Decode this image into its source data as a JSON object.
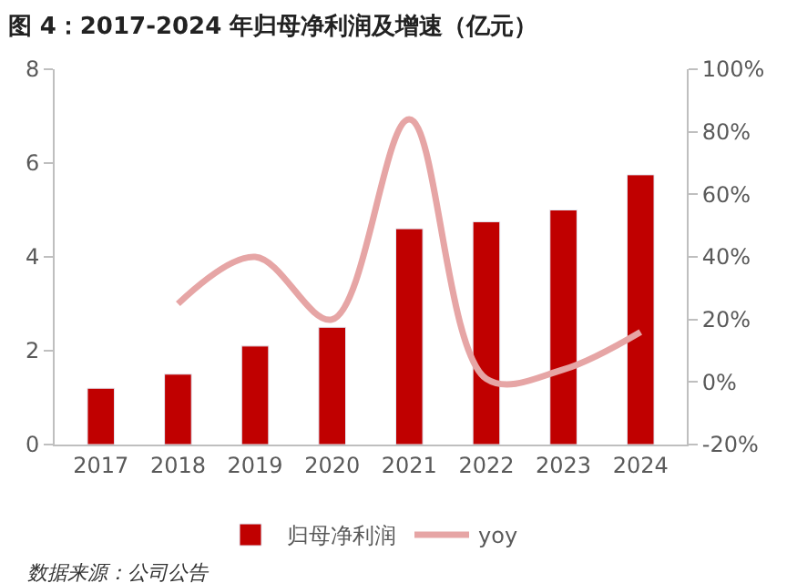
{
  "chart_data": {
    "type": "bar",
    "title": "图 4：2017-2024 年归母净利润及增速（亿元）",
    "categories": [
      "2017",
      "2018",
      "2019",
      "2020",
      "2021",
      "2022",
      "2023",
      "2024"
    ],
    "series": [
      {
        "name": "归母净利润",
        "color": "#c00000",
        "values": [
          1.2,
          1.5,
          2.1,
          2.5,
          4.6,
          4.75,
          5.0,
          5.75
        ]
      },
      {
        "name": "yoy",
        "type": "line",
        "axis": "y2",
        "color": "#e6a5a5",
        "values": [
          null,
          25,
          40,
          20,
          84,
          1,
          4,
          16
        ]
      }
    ],
    "ylim": [
      0,
      8
    ],
    "yticks": [
      0,
      2,
      4,
      6,
      8
    ],
    "y2lim": [
      -20,
      100
    ],
    "y2ticks": [
      {
        "value": -20,
        "label": "-20%"
      },
      {
        "value": 0,
        "label": "0%"
      },
      {
        "value": 20,
        "label": "20%"
      },
      {
        "value": 40,
        "label": "40%"
      },
      {
        "value": 60,
        "label": "60%"
      },
      {
        "value": 80,
        "label": "80%"
      },
      {
        "value": 100,
        "label": "100%"
      }
    ],
    "grid": false,
    "legend": "bottom",
    "marker": "none",
    "line_style": "solid",
    "annotations": [
      "数据来源：公司公告"
    ]
  }
}
